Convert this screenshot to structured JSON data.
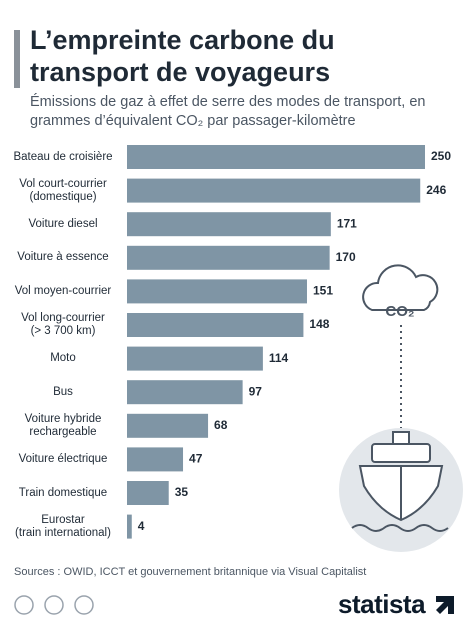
{
  "chart_data": {
    "type": "bar",
    "orientation": "horizontal",
    "title": "L’empreinte carbone du transport de voyageurs",
    "subtitle": "Émissions de gaz à effet de serre des modes de transport, en grammes d’équivalent CO₂ par passager-kilomètre",
    "categories": [
      "Bateau de croisière",
      "Vol court-courrier\n(domestique)",
      "Voiture diesel",
      "Voiture à essence",
      "Vol moyen-courrier",
      "Vol long-courrier\n(> 3 700 km)",
      "Moto",
      "Bus",
      "Voiture hybride\nrechargeable",
      "Voiture électrique",
      "Train domestique",
      "Eurostar\n(train international)"
    ],
    "values": [
      250,
      246,
      171,
      170,
      151,
      148,
      114,
      97,
      68,
      47,
      35,
      4
    ],
    "color": "#7f95a5",
    "source": "Sources : OWID, ICCT et gouvernement britannique via Visual Capitalist",
    "illustration_label": "CO₂",
    "brand": "statista"
  }
}
